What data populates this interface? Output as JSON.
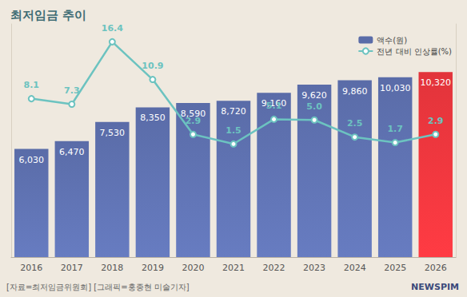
{
  "chart_data": {
    "type": "bar",
    "title": "최저임금 추이",
    "categories": [
      "2016",
      "2017",
      "2018",
      "2019",
      "2020",
      "2021",
      "2022",
      "2023",
      "2024",
      "2025",
      "2026"
    ],
    "series": [
      {
        "name": "액수(원)",
        "type": "bar",
        "colors": [
          "#5a6ca8",
          "#5a6ca8",
          "#5a6ca8",
          "#5a6ca8",
          "#5a6ca8",
          "#5a6ca8",
          "#5a6ca8",
          "#5a6ca8",
          "#5a6ca8",
          "#5a6ca8",
          "#e2343b"
        ],
        "values": [
          6030,
          6470,
          7530,
          8350,
          8590,
          8720,
          9160,
          9620,
          9860,
          10030,
          10320
        ],
        "value_labels": [
          "6,030",
          "6,470",
          "7,530",
          "8,350",
          "8,590",
          "8,720",
          "9,160",
          "9,620",
          "9,860",
          "10,030",
          "10,320"
        ]
      },
      {
        "name": "전년 대비 인상률(%)",
        "type": "line",
        "axis": "y2",
        "color": "#6cc3c0",
        "marker": "circle",
        "values": [
          8.1,
          7.3,
          16.4,
          10.9,
          2.9,
          1.5,
          5.1,
          5.0,
          2.5,
          1.7,
          2.9
        ],
        "value_labels": [
          "8.1",
          "7.3",
          "16.4",
          "10.9",
          "2.9",
          "1.5",
          "5.1",
          "5.0",
          "2.5",
          "1.7",
          "2.9"
        ]
      }
    ],
    "ylim": [
      0,
      13000
    ],
    "y2lim": [
      -15,
      19
    ],
    "tick_labels": "x",
    "grid": false,
    "legend": "top-right",
    "data_labels": true,
    "annotations": [
      "[자료=최저임금위원회] [그래픽=홍종현 미술기자]",
      "NEWSPIM"
    ]
  }
}
